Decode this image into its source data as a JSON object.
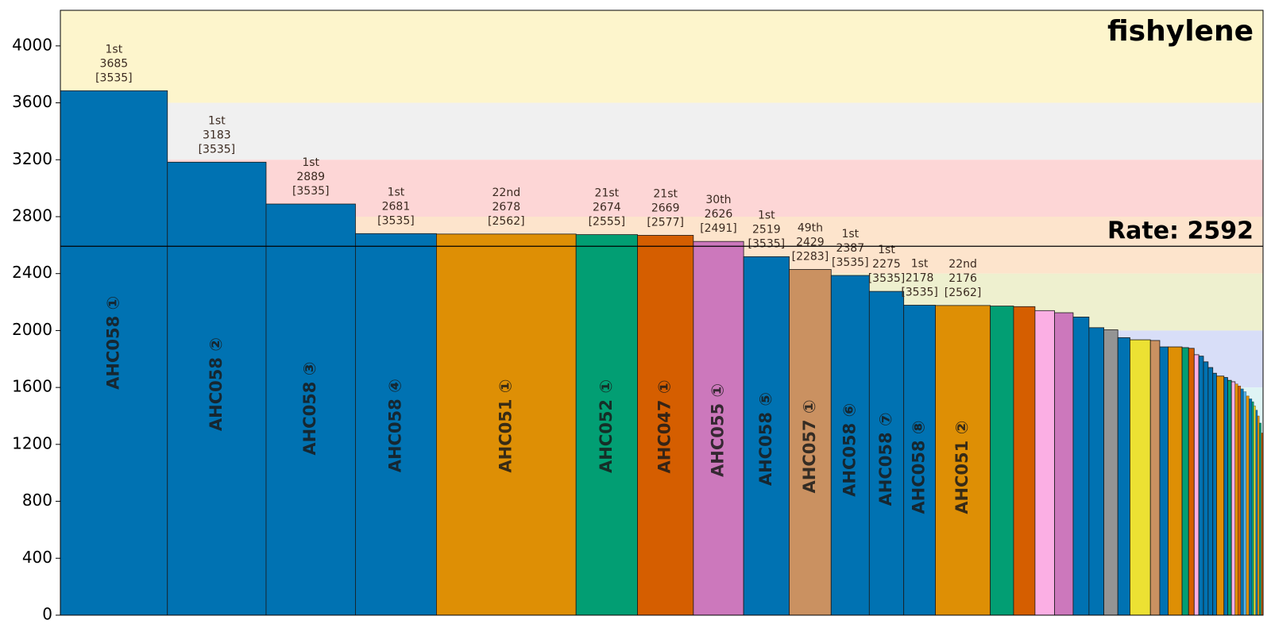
{
  "chart_data": {
    "type": "bar",
    "title": "fishylene",
    "rate_label": "Rate: 2592",
    "rate_value": 2592,
    "ylim": [
      0,
      4250
    ],
    "yticks": [
      0,
      400,
      800,
      1200,
      1600,
      2000,
      2400,
      2800,
      3200,
      3600,
      4000
    ],
    "grid": false,
    "bands": [
      {
        "from": 3600,
        "to": 4250,
        "color": "#fdf5cc"
      },
      {
        "from": 3200,
        "to": 3600,
        "color": "#f0f0f0"
      },
      {
        "from": 2800,
        "to": 3200,
        "color": "#fdd6d6"
      },
      {
        "from": 2400,
        "to": 2800,
        "color": "#fde4cc"
      },
      {
        "from": 2000,
        "to": 2400,
        "color": "#eef0cf"
      },
      {
        "from": 1600,
        "to": 2000,
        "color": "#d8def8"
      },
      {
        "from": 1200,
        "to": 1600,
        "color": "#dff4f4"
      },
      {
        "from": 0,
        "to": 1200,
        "color": "#f2f2f2"
      }
    ],
    "bars": [
      {
        "label": "AHC058 ①",
        "value": 3685,
        "weight": 115,
        "color": "#0072b2",
        "rank": "1st",
        "best": "[3535]"
      },
      {
        "label": "AHC058 ②",
        "value": 3183,
        "weight": 106,
        "color": "#0072b2",
        "rank": "1st",
        "best": "[3535]"
      },
      {
        "label": "AHC058 ③",
        "value": 2889,
        "weight": 96,
        "color": "#0072b2",
        "rank": "1st",
        "best": "[3535]"
      },
      {
        "label": "AHC058 ④",
        "value": 2681,
        "weight": 87,
        "color": "#0072b2",
        "rank": "1st",
        "best": "[3535]"
      },
      {
        "label": "AHC051 ①",
        "value": 2678,
        "weight": 150,
        "color": "#de8f05",
        "rank": "22nd",
        "best": "[2562]"
      },
      {
        "label": "AHC052 ①",
        "value": 2674,
        "weight": 66,
        "color": "#029e73",
        "rank": "21st",
        "best": "[2555]"
      },
      {
        "label": "AHC047 ①",
        "value": 2669,
        "weight": 60,
        "color": "#d55e00",
        "rank": "21st",
        "best": "[2577]"
      },
      {
        "label": "AHC055 ①",
        "value": 2626,
        "weight": 54,
        "color": "#cc78bc",
        "rank": "30th",
        "best": "[2491]"
      },
      {
        "label": "AHC058 ⑤",
        "value": 2519,
        "weight": 49,
        "color": "#0072b2",
        "rank": "1st",
        "best": "[3535]"
      },
      {
        "label": "AHC057 ①",
        "value": 2429,
        "weight": 45,
        "color": "#ca9161",
        "rank": "49th",
        "best": "[2283]"
      },
      {
        "label": "AHC058 ⑥",
        "value": 2387,
        "weight": 41,
        "color": "#0072b2",
        "rank": "1st",
        "best": "[3535]"
      },
      {
        "label": "AHC058 ⑦",
        "value": 2275,
        "weight": 37,
        "color": "#0072b2",
        "rank": "1st",
        "best": "[3535]"
      },
      {
        "label": "AHC058 ⑧",
        "value": 2178,
        "weight": 34,
        "color": "#0072b2",
        "rank": "1st",
        "best": "[3535]"
      },
      {
        "label": "AHC051 ②",
        "value": 2176,
        "weight": 59,
        "color": "#de8f05",
        "rank": "22nd",
        "best": "[2562]"
      },
      {
        "value": 2172,
        "weight": 25,
        "color": "#029e73"
      },
      {
        "value": 2168,
        "weight": 23,
        "color": "#d55e00"
      },
      {
        "value": 2140,
        "weight": 21,
        "color": "#fbafe4"
      },
      {
        "value": 2125,
        "weight": 20,
        "color": "#cc78bc"
      },
      {
        "value": 2095,
        "weight": 17,
        "color": "#0072b2"
      },
      {
        "value": 2020,
        "weight": 16,
        "color": "#0072b2"
      },
      {
        "value": 2005,
        "weight": 15,
        "color": "#949494"
      },
      {
        "value": 1950,
        "weight": 13,
        "color": "#0072b2"
      },
      {
        "value": 1935,
        "weight": 22,
        "color": "#ece133"
      },
      {
        "value": 1930,
        "weight": 10,
        "color": "#ca9161"
      },
      {
        "value": 1885,
        "weight": 9,
        "color": "#0072b2"
      },
      {
        "value": 1885,
        "weight": 15,
        "color": "#de8f05"
      },
      {
        "value": 1880,
        "weight": 7,
        "color": "#029e73"
      },
      {
        "value": 1875,
        "weight": 6,
        "color": "#d55e00"
      },
      {
        "value": 1830,
        "weight": 5,
        "color": "#fbafe4"
      },
      {
        "value": 1820,
        "weight": 5,
        "color": "#0072b2"
      },
      {
        "value": 1780,
        "weight": 5,
        "color": "#0072b2"
      },
      {
        "value": 1740,
        "weight": 5,
        "color": "#0072b2"
      },
      {
        "value": 1700,
        "weight": 4,
        "color": "#0072b2"
      },
      {
        "value": 1680,
        "weight": 8,
        "color": "#de8f05"
      },
      {
        "value": 1670,
        "weight": 4,
        "color": "#0072b2"
      },
      {
        "value": 1650,
        "weight": 4,
        "color": "#029e73"
      },
      {
        "value": 1640,
        "weight": 4,
        "color": "#fbafe4"
      },
      {
        "value": 1625,
        "weight": 3,
        "color": "#de8f05"
      },
      {
        "value": 1610,
        "weight": 3,
        "color": "#d55e00"
      },
      {
        "value": 1590,
        "weight": 3,
        "color": "#0072b2"
      },
      {
        "value": 1570,
        "weight": 3,
        "color": "#56b4e9"
      },
      {
        "value": 1540,
        "weight": 3,
        "color": "#de8f05"
      },
      {
        "value": 1520,
        "weight": 3,
        "color": "#0072b2"
      },
      {
        "value": 1500,
        "weight": 2,
        "color": "#029e73"
      },
      {
        "value": 1470,
        "weight": 2,
        "color": "#ece133"
      },
      {
        "value": 1440,
        "weight": 2,
        "color": "#0072b2"
      },
      {
        "value": 1400,
        "weight": 2,
        "color": "#de8f05"
      },
      {
        "value": 1350,
        "weight": 2,
        "color": "#029e73"
      },
      {
        "value": 1280,
        "weight": 2,
        "color": "#d55e00"
      }
    ]
  }
}
